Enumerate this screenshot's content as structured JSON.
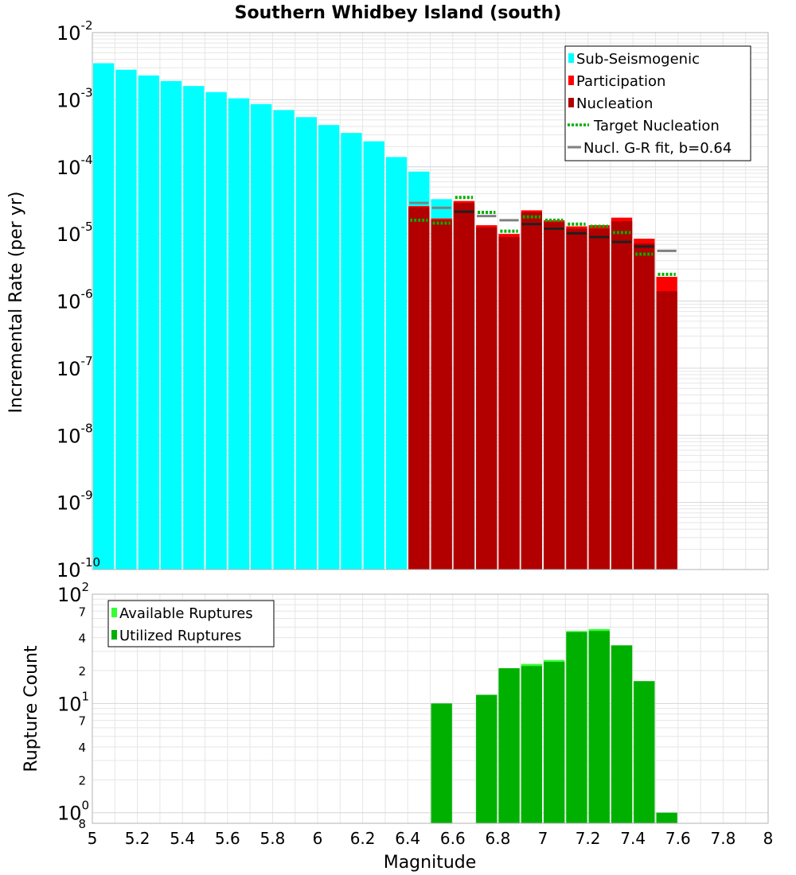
{
  "title": "Southern Whidbey Island (south)",
  "colors": {
    "sub_seismogenic": "#00ffff",
    "participation": "#ff0000",
    "nucleation": "#b20000",
    "target_nucleation": "#00b000",
    "gr_fit": "#808080",
    "available": "#33ff33",
    "utilized": "#00b000",
    "grid": "#e6e6e6",
    "frame": "#b3b3b3"
  },
  "chart_data": [
    {
      "type": "bar",
      "name": "incremental-rate",
      "title": "Southern Whidbey Island (south)",
      "xlabel": "",
      "ylabel": "Incremental Rate (per yr)",
      "xlim": [
        5,
        8
      ],
      "ylim": [
        1e-10,
        0.01
      ],
      "yscale": "log",
      "bin_width": 0.1,
      "y_ticks": [
        {
          "base": "10",
          "exp": "-10",
          "value": 1e-10
        },
        {
          "base": "10",
          "exp": "-9",
          "value": 1e-09
        },
        {
          "base": "10",
          "exp": "-8",
          "value": 1e-08
        },
        {
          "base": "10",
          "exp": "-7",
          "value": 1e-07
        },
        {
          "base": "10",
          "exp": "-6",
          "value": 1e-06
        },
        {
          "base": "10",
          "exp": "-5",
          "value": 1e-05
        },
        {
          "base": "10",
          "exp": "-4",
          "value": 0.0001
        },
        {
          "base": "10",
          "exp": "-3",
          "value": 0.001
        },
        {
          "base": "10",
          "exp": "-2",
          "value": 0.01
        }
      ],
      "series": [
        {
          "name": "Sub-Seismogenic",
          "key": "sub_seismogenic",
          "x": [
            5.05,
            5.15,
            5.25,
            5.35,
            5.45,
            5.55,
            5.65,
            5.75,
            5.85,
            5.95,
            6.05,
            6.15,
            6.25,
            6.35,
            6.45,
            6.55,
            6.65
          ],
          "values": [
            0.0035,
            0.0028,
            0.0023,
            0.0019,
            0.0016,
            0.0013,
            0.00105,
            0.00086,
            0.0007,
            0.00055,
            0.00042,
            0.00032,
            0.00024,
            0.00014,
            8.5e-05,
            3.3e-05,
            2.8e-05
          ]
        },
        {
          "name": "Participation",
          "key": "participation",
          "x": [
            6.45,
            6.55,
            6.65,
            6.75,
            6.85,
            6.95,
            7.05,
            7.15,
            7.25,
            7.35,
            7.45,
            7.55
          ],
          "values": [
            2.6e-05,
            1.7e-05,
            3.1e-05,
            1.35e-05,
            1e-05,
            2.25e-05,
            1.6e-05,
            1.3e-05,
            1.35e-05,
            1.75e-05,
            8.5e-06,
            2.3e-06
          ]
        },
        {
          "name": "Nucleation",
          "key": "nucleation",
          "x": [
            6.45,
            6.55,
            6.65,
            6.75,
            6.85,
            6.95,
            7.05,
            7.15,
            7.25,
            7.35,
            7.45,
            7.55
          ],
          "values": [
            2.5e-05,
            1.6e-05,
            2.9e-05,
            1.25e-05,
            9e-06,
            2.1e-05,
            1.5e-05,
            1.2e-05,
            1.2e-05,
            1.55e-05,
            7.2e-06,
            1.4e-06
          ]
        },
        {
          "name": "Target Nucleation",
          "key": "target_nucleation",
          "x": [
            6.45,
            6.55,
            6.65,
            6.75,
            6.85,
            6.95,
            7.05,
            7.15,
            7.25,
            7.35,
            7.45,
            7.55
          ],
          "values": [
            1.6e-05,
            1.45e-05,
            3.5e-05,
            2.1e-05,
            1.1e-05,
            1.8e-05,
            1.6e-05,
            1.4e-05,
            1.3e-05,
            1.05e-05,
            5e-06,
            2.5e-06
          ]
        },
        {
          "name": "Nucl. G-R fit, b=0.64",
          "key": "gr_fit",
          "x": [
            6.45,
            6.55,
            6.65,
            6.75,
            6.85,
            6.95,
            7.05,
            7.15,
            7.25,
            7.35,
            7.45,
            7.55
          ],
          "values": [
            2.9e-05,
            2.45e-05,
            2.15e-05,
            1.85e-05,
            1.6e-05,
            1.4e-05,
            1.2e-05,
            1.02e-05,
            9e-06,
            7.6e-06,
            6.5e-06,
            5.6e-06
          ]
        }
      ],
      "legend": {
        "position": "top-right",
        "entries": [
          "Sub-Seismogenic",
          "Participation",
          "Nucleation",
          "Target Nucleation",
          "Nucl. G-R fit, b=0.64"
        ]
      }
    },
    {
      "type": "bar",
      "name": "rupture-count",
      "title": "",
      "xlabel": "Magnitude",
      "ylabel": "Rupture Count",
      "xlim": [
        5,
        8
      ],
      "ylim": [
        0.8,
        100
      ],
      "yscale": "log",
      "bin_width": 0.1,
      "x_tick_labels": [
        "5",
        "5.2",
        "5.4",
        "5.6",
        "5.8",
        "6",
        "6.2",
        "6.4",
        "6.6",
        "6.8",
        "7",
        "7.2",
        "7.4",
        "7.6",
        "7.8",
        "8"
      ],
      "y_major_ticks": [
        {
          "base": "10",
          "exp": "0",
          "value": 1
        },
        {
          "base": "10",
          "exp": "1",
          "value": 10
        },
        {
          "base": "10",
          "exp": "2",
          "value": 100
        }
      ],
      "y_minor_ticks": [
        {
          "label": "8",
          "value": 0.8
        },
        {
          "label": "2",
          "value": 2
        },
        {
          "label": "4",
          "value": 4
        },
        {
          "label": "7",
          "value": 7
        },
        {
          "label": "2",
          "value": 20
        },
        {
          "label": "4",
          "value": 40
        },
        {
          "label": "7",
          "value": 70
        }
      ],
      "series": [
        {
          "name": "Available Ruptures",
          "key": "available",
          "x": [
            6.55,
            6.75,
            6.85,
            6.95,
            7.05,
            7.15,
            7.25,
            7.35,
            7.45,
            7.55
          ],
          "values": [
            10,
            12,
            21,
            23,
            25,
            46,
            48,
            34,
            16,
            1
          ]
        },
        {
          "name": "Utilized Ruptures",
          "key": "utilized",
          "x": [
            6.55,
            6.75,
            6.85,
            6.95,
            7.05,
            7.15,
            7.25,
            7.35,
            7.45,
            7.55
          ],
          "values": [
            10,
            12,
            21,
            22,
            24,
            45,
            46,
            34,
            16,
            1
          ]
        }
      ],
      "legend": {
        "position": "top-left",
        "entries": [
          "Available Ruptures",
          "Utilized Ruptures"
        ]
      }
    }
  ]
}
